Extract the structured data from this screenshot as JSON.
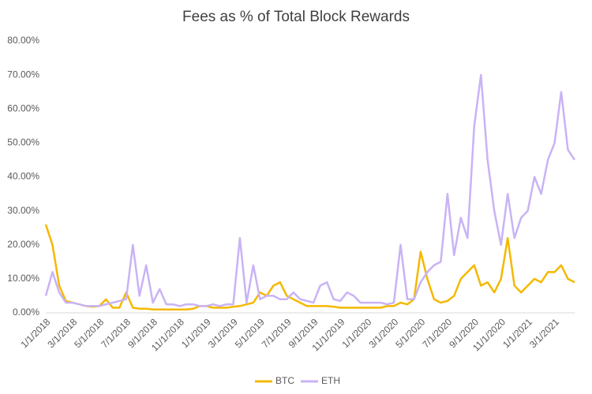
{
  "chart_data": {
    "type": "line",
    "title": "Fees as % of Total Block Rewards",
    "categories": [
      "1/1/2018",
      null,
      null,
      null,
      "3/1/2018",
      null,
      null,
      null,
      "5/1/2018",
      null,
      null,
      null,
      "7/1/2018",
      null,
      null,
      null,
      "9/1/2018",
      null,
      null,
      null,
      "11/1/2018",
      null,
      null,
      null,
      "1/1/2019",
      null,
      null,
      null,
      "3/1/2019",
      null,
      null,
      null,
      "5/1/2019",
      null,
      null,
      null,
      "7/1/2019",
      null,
      null,
      null,
      "9/1/2019",
      null,
      null,
      null,
      "11/1/2019",
      null,
      null,
      null,
      "1/1/2020",
      null,
      null,
      null,
      "3/1/2020",
      null,
      null,
      null,
      "5/1/2020",
      null,
      null,
      null,
      "7/1/2020",
      null,
      null,
      null,
      "9/1/2020",
      null,
      null,
      null,
      "11/1/2020",
      null,
      null,
      null,
      "1/1/2021",
      null,
      null,
      null,
      "3/1/2021",
      null,
      null,
      null
    ],
    "series": [
      {
        "name": "BTC",
        "color": "#f5b800",
        "values": [
          26,
          20,
          8,
          3.5,
          3,
          2.5,
          2,
          1.8,
          2,
          4,
          1.5,
          1.5,
          6,
          1.5,
          1.2,
          1.2,
          1,
          1,
          1,
          1,
          1,
          1,
          1.2,
          2,
          2,
          1.5,
          1.5,
          1.5,
          1.8,
          2,
          2.5,
          3,
          6,
          5,
          8,
          9,
          5,
          4,
          3,
          2,
          2,
          2,
          2,
          1.8,
          1.5,
          1.5,
          1.5,
          1.5,
          1.5,
          1.5,
          1.5,
          2,
          2,
          3,
          2.5,
          4,
          18,
          10,
          4,
          3,
          3.5,
          5,
          10,
          12,
          14,
          8,
          9,
          6,
          10,
          22,
          8,
          6,
          8,
          10,
          9,
          12,
          12,
          14,
          10,
          9
        ]
      },
      {
        "name": "ETH",
        "color": "#c9b3f5",
        "values": [
          5,
          12,
          6,
          3,
          3,
          2.5,
          2,
          2,
          2,
          2.5,
          3,
          3.5,
          4,
          20,
          5,
          14,
          3,
          7,
          2.5,
          2.5,
          2,
          2.5,
          2.5,
          2,
          2,
          2.5,
          2,
          2.5,
          2.5,
          22,
          3,
          14,
          4,
          5,
          5,
          4,
          4,
          6,
          4,
          3.5,
          3,
          8,
          9,
          4,
          3.5,
          6,
          5,
          3,
          3,
          3,
          3,
          2.5,
          3,
          20,
          4,
          4,
          9,
          12,
          14,
          15,
          35,
          17,
          28,
          22,
          55,
          70,
          45,
          30,
          20,
          35,
          22,
          28,
          30,
          40,
          35,
          45,
          50,
          65,
          48,
          45
        ]
      }
    ],
    "ylim": [
      0,
      80
    ],
    "yticks": [
      {
        "value": 0,
        "label": "0.00%"
      },
      {
        "value": 10,
        "label": "10.00%"
      },
      {
        "value": 20,
        "label": "20.00%"
      },
      {
        "value": 30,
        "label": "30.00%"
      },
      {
        "value": 40,
        "label": "40.00%"
      },
      {
        "value": 50,
        "label": "50.00%"
      },
      {
        "value": 60,
        "label": "60.00%"
      },
      {
        "value": 70,
        "label": "70.00%"
      },
      {
        "value": 80,
        "label": "80.00%"
      }
    ],
    "grid": false,
    "legend": "bottom"
  }
}
